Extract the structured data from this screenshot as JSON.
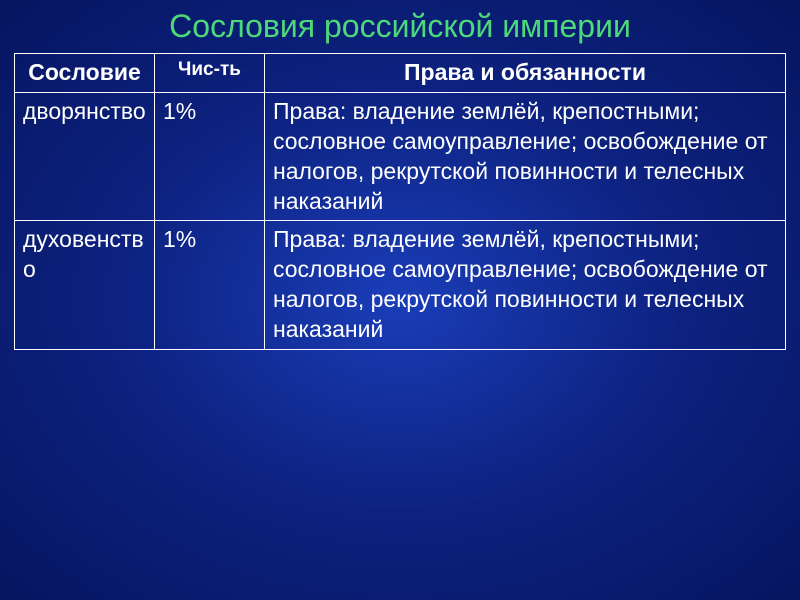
{
  "slide": {
    "title": "Сословия российской империи",
    "title_color": "#4dd97a",
    "title_fontsize": 32,
    "background_gradient": [
      "#1a3db8",
      "#0d2280",
      "#061560"
    ],
    "text_color": "#ffffff",
    "border_color": "#ffffff",
    "table": {
      "columns": [
        {
          "label": "Сословие",
          "width": 140
        },
        {
          "label": "Чис-ть",
          "width": 110
        },
        {
          "label": "Права и обязанности",
          "width": "auto"
        }
      ],
      "rows": [
        {
          "estate": "дворянство",
          "share": "1%",
          "rights": "Права: владение землёй, крепостными; сословное самоуправление; освобождение от налогов, рекрутской повинности и телесных наказаний"
        },
        {
          "estate": "духовенство",
          "share": "1%",
          "rights": "Права: владение землёй, крепостными; сословное самоуправление; освобождение от налогов, рекрутской повинности и телесных наказаний"
        }
      ],
      "cell_fontsize": 23,
      "header_fontsize": 23
    }
  }
}
